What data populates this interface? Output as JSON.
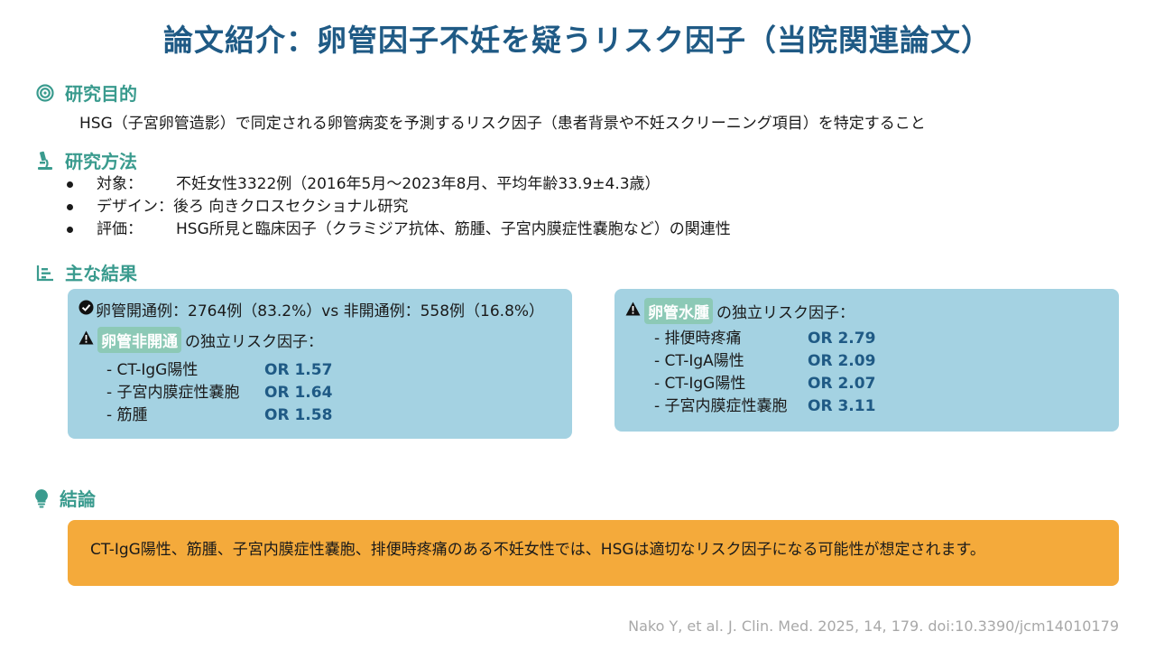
{
  "title": "論文紹介：卵管因子不妊を疑うリスク因子（当院関連論文）",
  "purpose": {
    "heading": "研究目的",
    "text": "HSG（子宮卵管造影）で同定される卵管病変を予測するリスク因子（患者背景や不妊スクリーニング項目）を特定すること"
  },
  "methods": {
    "heading": "研究方法",
    "items": [
      {
        "key": "対象：",
        "value": "不妊女性3322例（2016年5月～2023年8月、平均年齢33.9±4.3歳）"
      },
      {
        "key": "デザイン：",
        "value": "後ろ 向きクロスセクショナル研究"
      },
      {
        "key": "評価：",
        "value": "HSG所見と臨床因子（クラミジア抗体、筋腫、子宮内膜症性嚢胞など）の関連性"
      }
    ]
  },
  "results": {
    "heading": "主な結果",
    "left": {
      "summary": "卵管開通例：2764例（83.2%）vs 非開通例：558例（16.8%）",
      "highlight": "卵管非開通",
      "factor_label": "の独立リスク因子：",
      "factors": [
        {
          "label": "- CT-IgG陽性",
          "or": "OR 1.57"
        },
        {
          "label": "- 子宮内膜症性嚢胞",
          "or": "OR 1.64"
        },
        {
          "label": "- 筋腫",
          "or": "OR 1.58"
        }
      ]
    },
    "right": {
      "highlight": "卵管水腫",
      "factor_label": "の独立リスク因子：",
      "factors": [
        {
          "label": "- 排便時疼痛",
          "or": "OR 2.79"
        },
        {
          "label": "- CT-IgA陽性",
          "or": "OR 2.09"
        },
        {
          "label": "- CT-IgG陽性",
          "or": "OR 2.07"
        },
        {
          "label": "- 子宮内膜症性嚢胞",
          "or": "OR 3.11"
        }
      ]
    }
  },
  "conclusion": {
    "heading": "結論",
    "text": "CT-IgG陽性、筋腫、子宮内膜症性嚢胞、排便時疼痛のある不妊女性では、HSGは適切なリスク因子になる可能性が想定されます。"
  },
  "citation": "Nako Y, et al. J. Clin. Med. 2025, 14, 179. doi:10.3390/jcm14010179",
  "colors": {
    "title": "#1f5a85",
    "heading": "#3a9b8e",
    "result_box": "#a4d2e2",
    "highlight": "#8cc9b6",
    "conclusion_box": "#f4aa3b",
    "or_value": "#1f5a85"
  }
}
